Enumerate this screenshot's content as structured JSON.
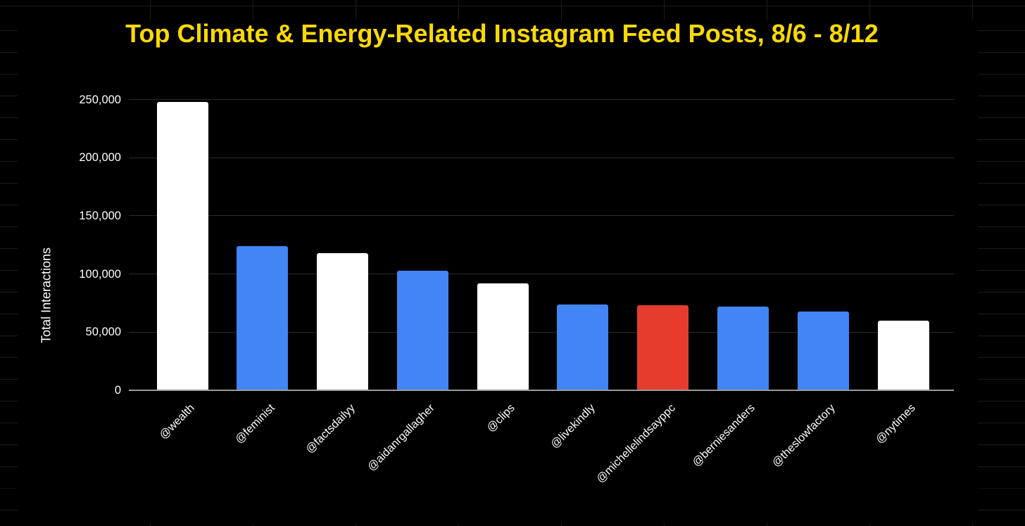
{
  "page": {
    "background_color": "#000000"
  },
  "chart": {
    "title": "Top Climate & Energy-Related Instagram Feed Posts, 8/6 - 8/12",
    "title_color": "#fcd903",
    "y_axis_title": "Total Interactions",
    "text_color": "#ffffff"
  },
  "chart_data": {
    "type": "bar",
    "title": "Top Climate & Energy-Related Instagram Feed Posts, 8/6 - 8/12",
    "xlabel": "",
    "ylabel": "Total Interactions",
    "ylim": [
      0,
      250000
    ],
    "grid": true,
    "legend": "none",
    "categories": [
      "@wealth",
      "@feminist",
      "@factsdailyy",
      "@aidanrgallagher",
      "@clips",
      "@livekindly",
      "@michellelindsayppc",
      "@berniesanders",
      "@theslowfactory",
      "@nytimes"
    ],
    "values": [
      248000,
      124000,
      118000,
      103000,
      92000,
      74000,
      73000,
      72000,
      68000,
      60000
    ],
    "bar_colors": [
      "white",
      "blue",
      "white",
      "blue",
      "white",
      "blue",
      "red",
      "blue",
      "blue",
      "white"
    ],
    "palette": {
      "white": "#ffffff",
      "blue": "#4285f4",
      "red": "#e63c2d"
    },
    "yticks": {
      "values": [
        0,
        50000,
        100000,
        150000,
        200000,
        250000
      ],
      "labels": [
        "0",
        "50,000",
        "100,000",
        "150,000",
        "200,000",
        "250,000"
      ]
    }
  }
}
